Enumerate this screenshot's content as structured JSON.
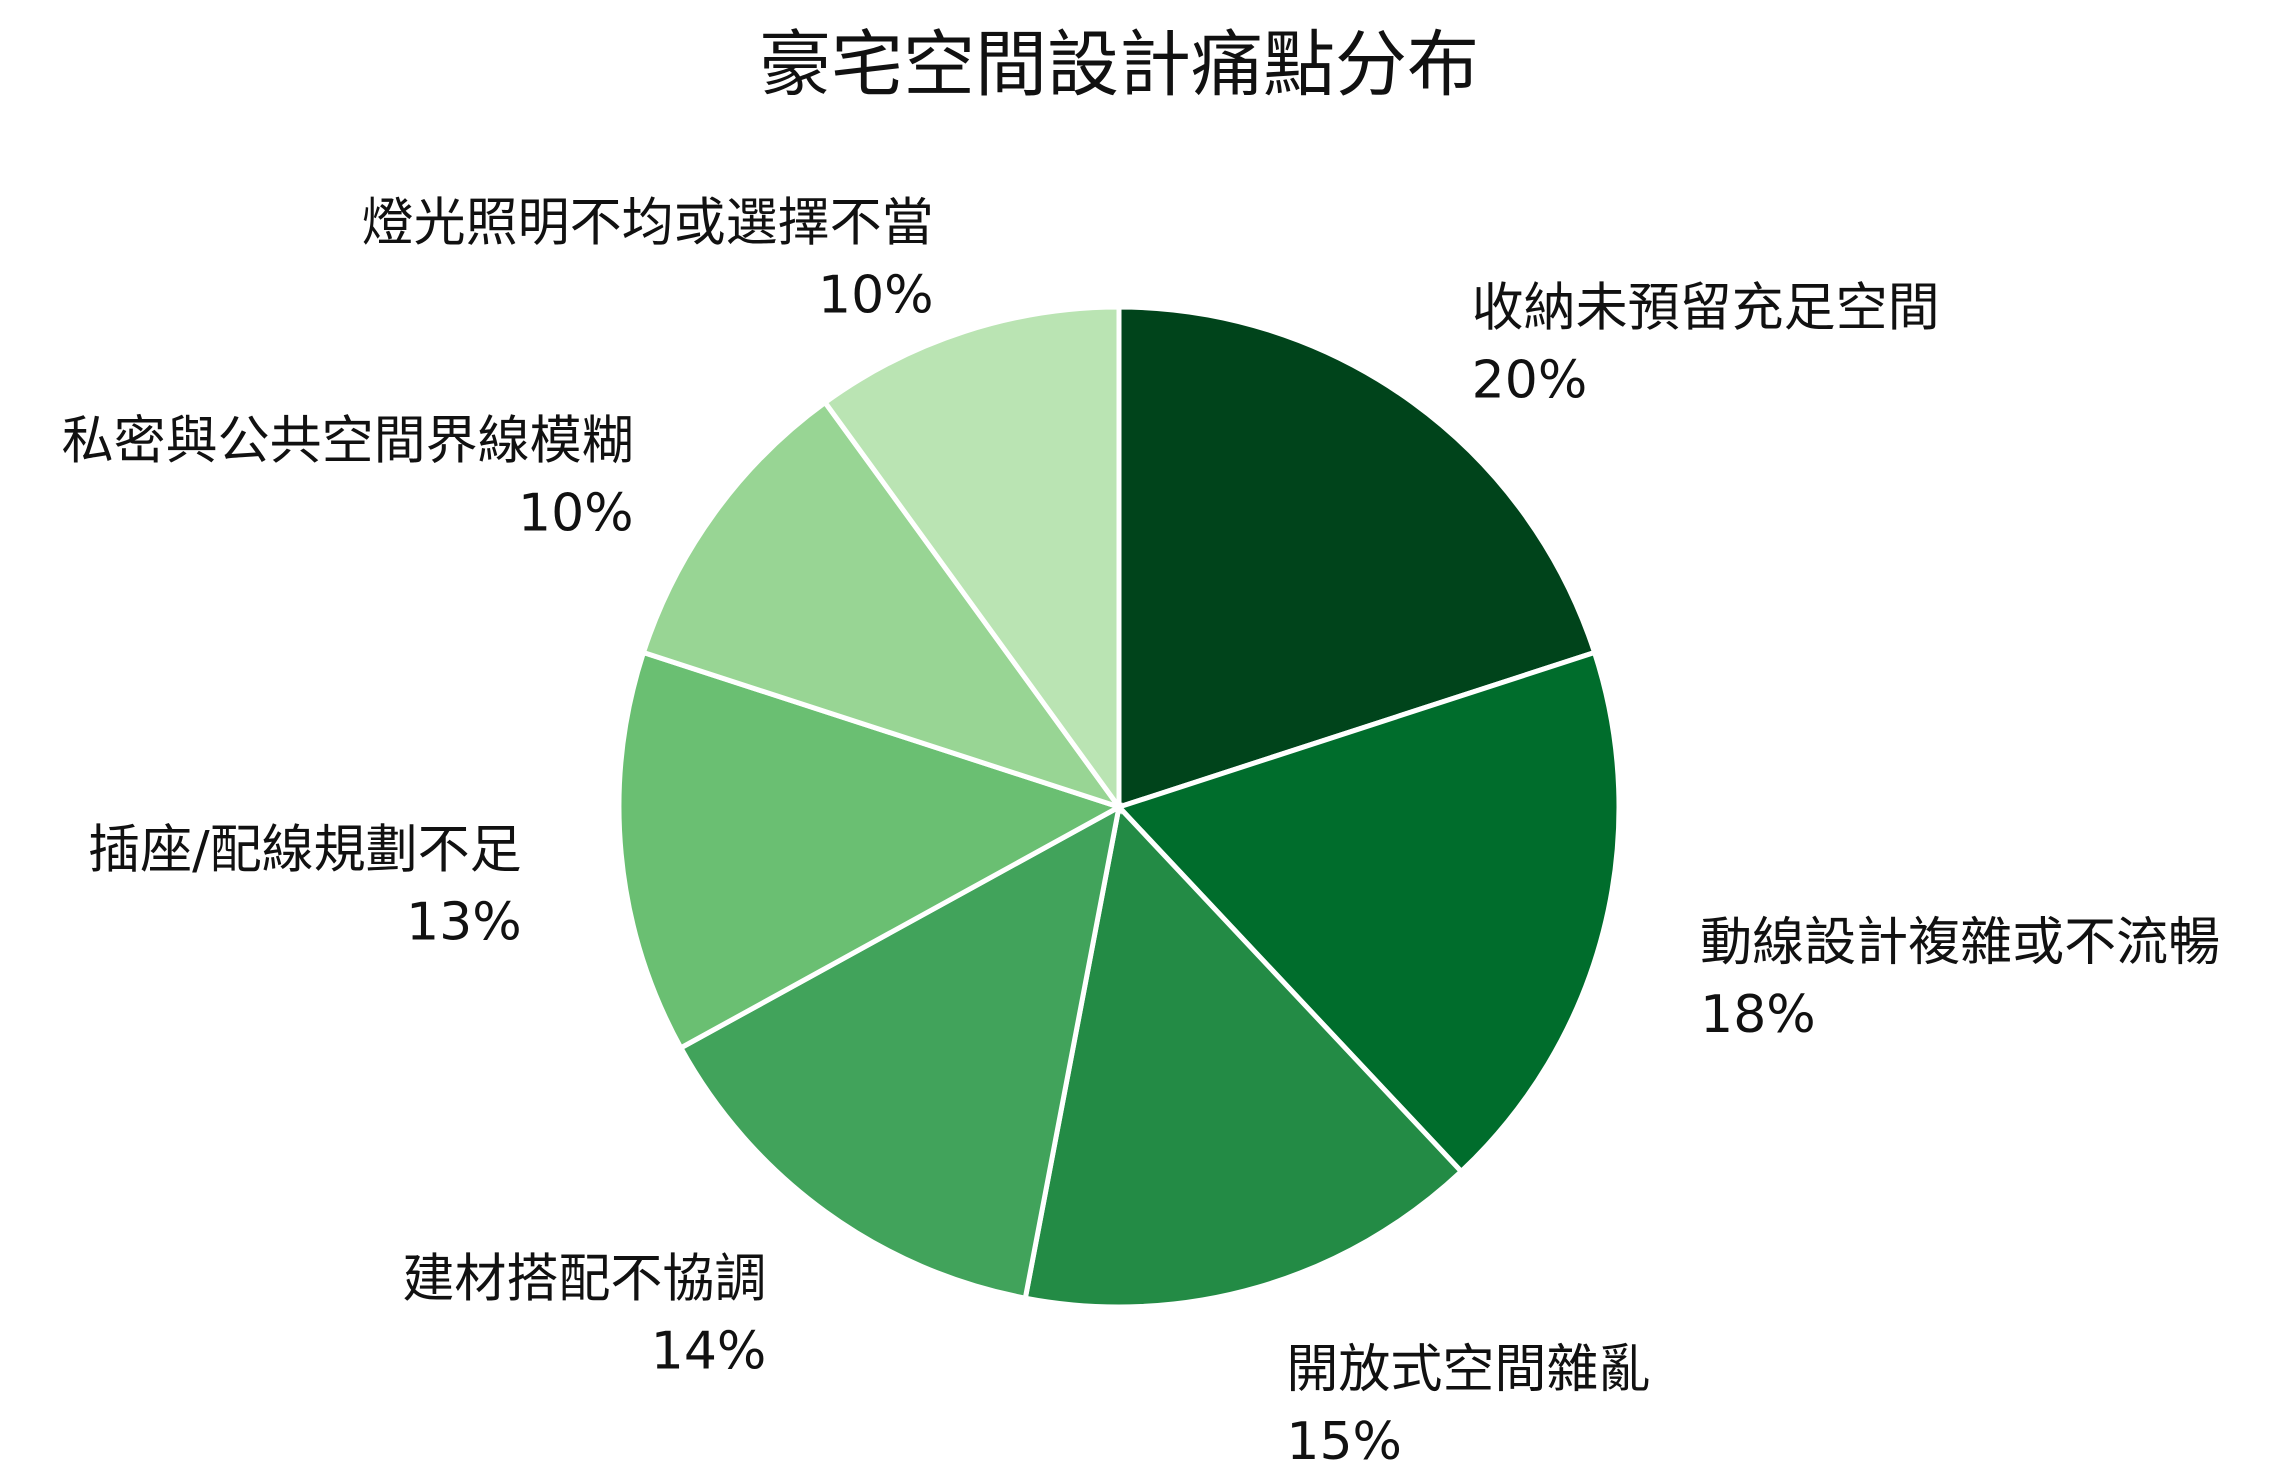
{
  "chart_data": {
    "type": "pie",
    "title": "豪宅空間設計痛點分布",
    "categories": [
      "收納未預留充足空間",
      "動線設計複雜或不流暢",
      "開放式空間雜亂",
      "建材搭配不協調",
      "插座/配線規劃不足",
      "私密與公共空間界線模糊",
      "燈光照明不均或選擇不當"
    ],
    "values": [
      20,
      18,
      15,
      14,
      13,
      10,
      10
    ],
    "value_labels": [
      "20%",
      "18%",
      "15%",
      "14%",
      "13%",
      "10%",
      "10%"
    ],
    "colors": [
      "#00441b",
      "#006d2c",
      "#238b45",
      "#41a35b",
      "#6abf72",
      "#98d594",
      "#bae4b3"
    ],
    "start_angle": 90,
    "direction": "clockwise"
  }
}
